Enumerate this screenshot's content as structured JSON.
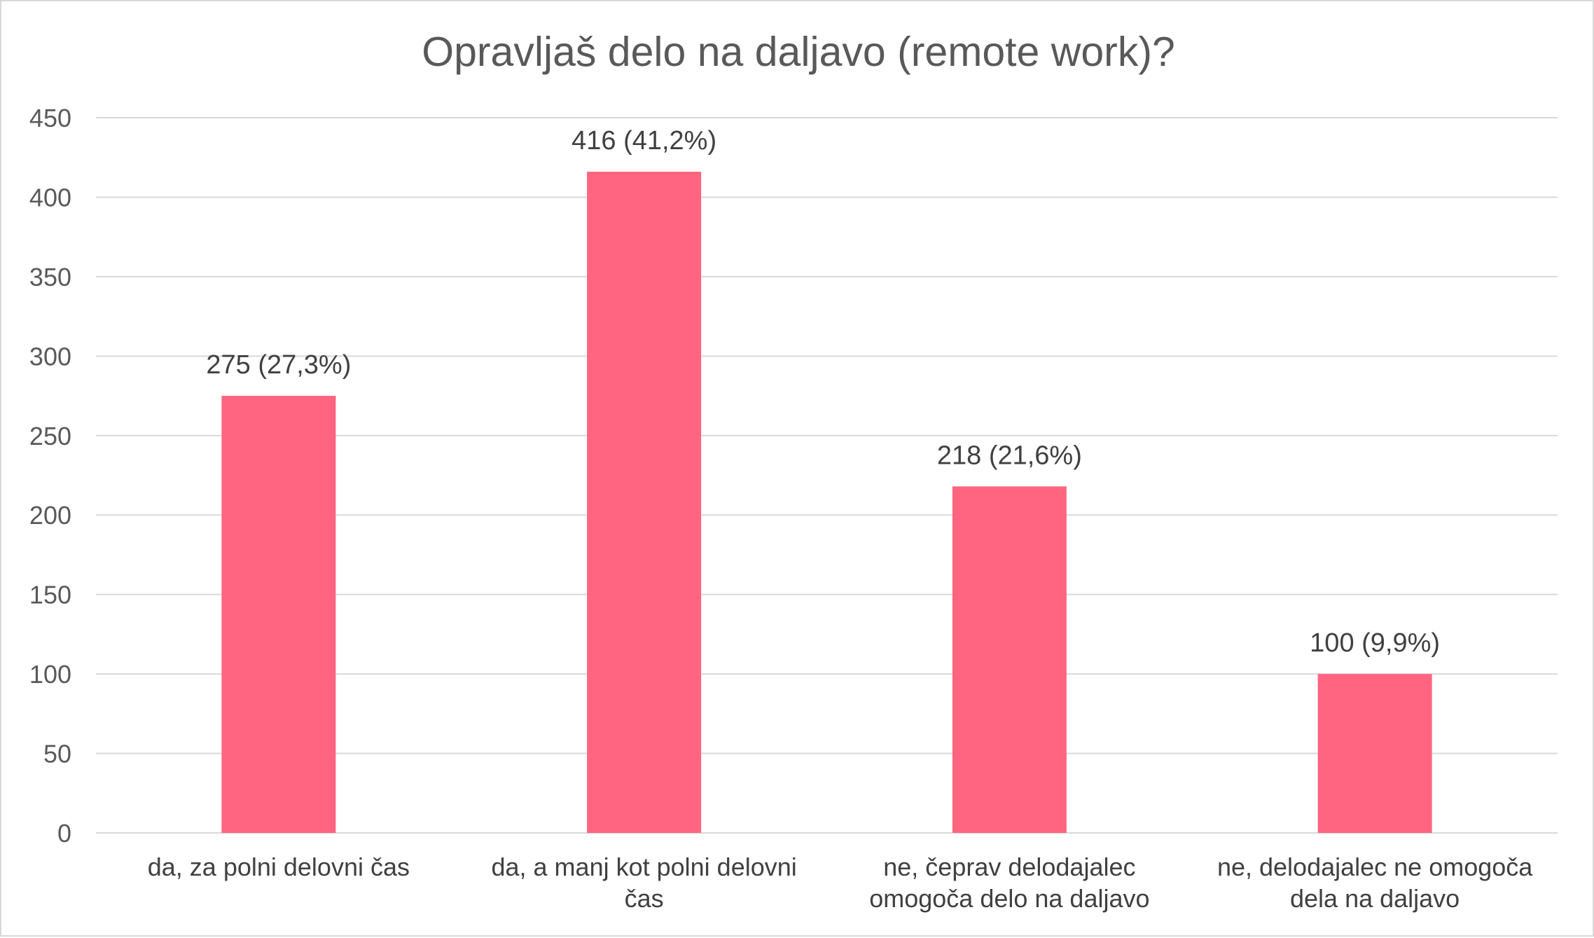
{
  "chart_data": {
    "type": "bar",
    "title": "Opravljaš delo na daljavo (remote work)?",
    "xlabel": "",
    "ylabel": "",
    "ylim": [
      0,
      450
    ],
    "yticks": [
      0,
      50,
      100,
      150,
      200,
      250,
      300,
      350,
      400,
      450
    ],
    "grid": true,
    "legend": "none",
    "bar_color": "#ff6480",
    "categories": [
      [
        "da, za polni delovni čas"
      ],
      [
        "da, a manj kot polni delovni",
        "čas"
      ],
      [
        "ne, čeprav delodajalec",
        "omogoča delo na daljavo"
      ],
      [
        "ne, delodajalec ne omogoča",
        "dela na daljavo"
      ]
    ],
    "values": [
      275,
      416,
      218,
      100
    ],
    "data_labels": [
      "275 (27,3%)",
      "416 (41,2%)",
      "218 (21,6%)",
      "100 (9,9%)"
    ]
  }
}
